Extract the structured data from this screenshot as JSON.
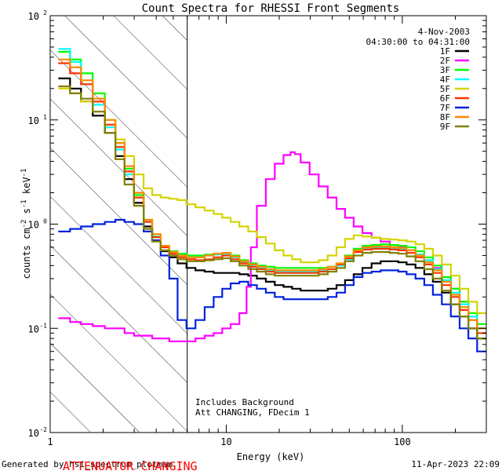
{
  "chart_data": {
    "type": "line",
    "title": "Count Spectra for RHESSI Front Segments",
    "xlabel": "Energy (keV)",
    "ylabel_parts": [
      "counts cm",
      "-2",
      " s",
      "-1",
      " keV",
      "-1"
    ],
    "xscale": "log",
    "yscale": "log",
    "xlim": [
      1,
      300
    ],
    "ylim": [
      0.01,
      100
    ],
    "x_ticks": [
      {
        "value": 1,
        "label": "1"
      },
      {
        "value": 10,
        "label": "10"
      },
      {
        "value": 100,
        "label": "100"
      }
    ],
    "y_ticks": [
      {
        "value": 0.01,
        "base": "10",
        "exp": "-2"
      },
      {
        "value": 0.1,
        "base": "10",
        "exp": "-1"
      },
      {
        "value": 1,
        "base": "10",
        "exp": "0"
      },
      {
        "value": 10,
        "base": "10",
        "exp": "1"
      },
      {
        "value": 100,
        "base": "10",
        "exp": "2"
      }
    ],
    "shaded_region": {
      "from": 1,
      "to": 6,
      "style": "diagonal-hatch"
    },
    "vertical_line": 6,
    "date": "4-Nov-2003",
    "time_range": "04:30:00 to 04:31:00",
    "legend_position": "top-right",
    "annotations": [
      "Includes Background",
      "Att CHANGING, FDecim  1"
    ],
    "series": [
      {
        "name": "1F",
        "color": "#000000",
        "x": [
          1.2,
          1.4,
          1.6,
          1.9,
          2.2,
          2.5,
          2.8,
          3.2,
          3.6,
          4.0,
          4.5,
          5.0,
          5.6,
          6.3,
          7.1,
          8.0,
          9.0,
          10,
          11.2,
          12.6,
          14.1,
          15.8,
          17.8,
          20,
          22.4,
          25,
          28,
          31.6,
          35.5,
          40,
          44.7,
          50,
          56,
          63,
          71,
          80,
          90,
          100,
          112,
          126,
          141,
          158,
          178,
          200,
          224,
          251,
          282
        ],
        "y": [
          25,
          20,
          15,
          11,
          7.5,
          4.5,
          2.7,
          1.6,
          0.95,
          0.7,
          0.55,
          0.48,
          0.42,
          0.38,
          0.36,
          0.35,
          0.34,
          0.34,
          0.34,
          0.33,
          0.32,
          0.3,
          0.28,
          0.26,
          0.25,
          0.24,
          0.23,
          0.23,
          0.23,
          0.24,
          0.26,
          0.29,
          0.33,
          0.38,
          0.42,
          0.44,
          0.44,
          0.43,
          0.41,
          0.38,
          0.33,
          0.28,
          0.22,
          0.17,
          0.13,
          0.1,
          0.08
        ]
      },
      {
        "name": "2F",
        "color": "#ff00ff",
        "x": [
          1.2,
          1.4,
          1.6,
          1.9,
          2.2,
          2.5,
          2.8,
          3.2,
          3.6,
          4.0,
          4.5,
          5.0,
          5.6,
          6.3,
          7.1,
          8.0,
          9.0,
          10,
          11.2,
          12.6,
          13.5,
          14.1,
          15.8,
          17.8,
          20,
          22.4,
          24,
          25,
          28,
          31.6,
          35.5,
          40,
          44.7,
          50,
          56,
          63,
          71,
          80,
          90,
          100,
          112,
          126,
          141,
          158,
          178,
          200,
          224,
          251,
          282
        ],
        "y": [
          0.125,
          0.115,
          0.11,
          0.105,
          0.1,
          0.1,
          0.09,
          0.085,
          0.085,
          0.08,
          0.08,
          0.075,
          0.075,
          0.075,
          0.08,
          0.085,
          0.09,
          0.1,
          0.11,
          0.14,
          0.25,
          0.6,
          1.5,
          2.7,
          3.8,
          4.6,
          4.9,
          4.7,
          3.9,
          3.0,
          2.3,
          1.8,
          1.4,
          1.15,
          0.95,
          0.82,
          0.74,
          0.68,
          0.63,
          0.6,
          0.56,
          0.51,
          0.45,
          0.38,
          0.31,
          0.24,
          0.18,
          0.13,
          0.1
        ]
      },
      {
        "name": "3F",
        "color": "#00ff00",
        "x": [
          1.2,
          1.4,
          1.6,
          1.9,
          2.2,
          2.5,
          2.8,
          3.2,
          3.6,
          4.0,
          4.5,
          5.0,
          5.6,
          6.3,
          7.1,
          8.0,
          9.0,
          10,
          11.2,
          12.6,
          14.1,
          15.8,
          17.8,
          20,
          22.4,
          25,
          28,
          31.6,
          35.5,
          40,
          44.7,
          50,
          56,
          63,
          71,
          80,
          90,
          100,
          112,
          126,
          141,
          158,
          178,
          200,
          224,
          251,
          282
        ],
        "y": [
          45,
          38,
          28,
          18,
          10,
          6,
          3.4,
          1.9,
          1.1,
          0.8,
          0.62,
          0.55,
          0.52,
          0.5,
          0.5,
          0.51,
          0.52,
          0.53,
          0.5,
          0.45,
          0.42,
          0.4,
          0.39,
          0.38,
          0.38,
          0.38,
          0.38,
          0.38,
          0.38,
          0.39,
          0.42,
          0.5,
          0.58,
          0.62,
          0.63,
          0.64,
          0.63,
          0.62,
          0.6,
          0.55,
          0.48,
          0.4,
          0.31,
          0.24,
          0.18,
          0.14,
          0.11
        ]
      },
      {
        "name": "4F",
        "color": "#00ffff",
        "x": [
          1.2,
          1.4,
          1.6,
          1.9,
          2.2,
          2.5,
          2.8,
          3.2,
          3.6,
          4.0,
          4.5,
          5.0,
          5.6,
          6.3,
          7.1,
          8.0,
          9.0,
          10,
          11.2,
          12.6,
          14.1,
          15.8,
          17.8,
          20,
          22.4,
          25,
          28,
          31.6,
          35.5,
          40,
          44.7,
          50,
          56,
          63,
          71,
          80,
          90,
          100,
          112,
          126,
          141,
          158,
          178,
          200,
          224,
          251,
          282
        ],
        "y": [
          48,
          36,
          22,
          14,
          8.5,
          5.2,
          3.0,
          1.8,
          1.05,
          0.76,
          0.6,
          0.53,
          0.5,
          0.48,
          0.48,
          0.5,
          0.51,
          0.52,
          0.48,
          0.43,
          0.4,
          0.38,
          0.36,
          0.35,
          0.35,
          0.35,
          0.35,
          0.35,
          0.36,
          0.37,
          0.4,
          0.46,
          0.54,
          0.58,
          0.59,
          0.6,
          0.59,
          0.58,
          0.56,
          0.51,
          0.45,
          0.37,
          0.29,
          0.22,
          0.17,
          0.13,
          0.1
        ]
      },
      {
        "name": "5F",
        "color": "#d4d400",
        "x": [
          1.2,
          1.4,
          1.6,
          1.9,
          2.2,
          2.5,
          2.8,
          3.2,
          3.6,
          4.0,
          4.5,
          5.0,
          5.6,
          6.3,
          7.1,
          8.0,
          9.0,
          10,
          11.2,
          12.6,
          14.1,
          15.8,
          17.8,
          20,
          22.4,
          25,
          28,
          31.6,
          35.5,
          40,
          44.7,
          50,
          56,
          63,
          71,
          80,
          90,
          100,
          112,
          126,
          141,
          158,
          178,
          200,
          224,
          251,
          282
        ],
        "y": [
          20,
          18,
          15,
          12,
          9,
          6.5,
          4.5,
          3.0,
          2.2,
          1.9,
          1.8,
          1.75,
          1.7,
          1.55,
          1.45,
          1.35,
          1.25,
          1.15,
          1.05,
          0.95,
          0.85,
          0.75,
          0.65,
          0.56,
          0.5,
          0.46,
          0.43,
          0.43,
          0.45,
          0.5,
          0.6,
          0.72,
          0.78,
          0.76,
          0.74,
          0.72,
          0.71,
          0.7,
          0.68,
          0.64,
          0.58,
          0.5,
          0.41,
          0.32,
          0.24,
          0.18,
          0.14
        ]
      },
      {
        "name": "6F",
        "color": "#ff3300",
        "x": [
          1.2,
          1.4,
          1.6,
          1.9,
          2.2,
          2.5,
          2.8,
          3.2,
          3.6,
          4.0,
          4.5,
          5.0,
          5.6,
          6.3,
          7.1,
          8.0,
          9.0,
          10,
          11.2,
          12.6,
          14.1,
          15.8,
          17.8,
          20,
          22.4,
          25,
          28,
          31.6,
          35.5,
          40,
          44.7,
          50,
          56,
          63,
          71,
          80,
          90,
          100,
          112,
          126,
          141,
          158,
          178,
          200,
          224,
          251,
          282
        ],
        "y": [
          35,
          28,
          22,
          15,
          9,
          5.5,
          3.2,
          1.8,
          1.05,
          0.75,
          0.6,
          0.52,
          0.48,
          0.46,
          0.45,
          0.46,
          0.48,
          0.5,
          0.46,
          0.42,
          0.39,
          0.37,
          0.35,
          0.34,
          0.34,
          0.34,
          0.34,
          0.34,
          0.35,
          0.37,
          0.41,
          0.47,
          0.54,
          0.57,
          0.58,
          0.58,
          0.57,
          0.56,
          0.53,
          0.48,
          0.41,
          0.34,
          0.26,
          0.2,
          0.15,
          0.12,
          0.09
        ]
      },
      {
        "name": "7F",
        "color": "#0022dd",
        "x": [
          1.2,
          1.4,
          1.6,
          1.9,
          2.2,
          2.5,
          2.8,
          3.2,
          3.6,
          4.0,
          4.5,
          5.0,
          5.6,
          6.3,
          7.1,
          8.0,
          9.0,
          10,
          11.2,
          12.6,
          14.1,
          15.8,
          17.8,
          20,
          22.4,
          25,
          28,
          31.6,
          35.5,
          40,
          44.7,
          50,
          56,
          63,
          71,
          80,
          90,
          100,
          112,
          126,
          141,
          158,
          178,
          200,
          224,
          251,
          282
        ],
        "y": [
          0.85,
          0.9,
          0.95,
          1.0,
          1.05,
          1.1,
          1.05,
          1.0,
          0.85,
          0.7,
          0.5,
          0.3,
          0.12,
          0.1,
          0.12,
          0.16,
          0.2,
          0.24,
          0.27,
          0.28,
          0.26,
          0.24,
          0.22,
          0.2,
          0.19,
          0.19,
          0.19,
          0.19,
          0.19,
          0.2,
          0.22,
          0.26,
          0.31,
          0.34,
          0.35,
          0.36,
          0.36,
          0.35,
          0.33,
          0.3,
          0.26,
          0.21,
          0.17,
          0.13,
          0.1,
          0.08,
          0.06
        ]
      },
      {
        "name": "8F",
        "color": "#ff8800",
        "x": [
          1.2,
          1.4,
          1.6,
          1.9,
          2.2,
          2.5,
          2.8,
          3.2,
          3.6,
          4.0,
          4.5,
          5.0,
          5.6,
          6.3,
          7.1,
          8.0,
          9.0,
          10,
          11.2,
          12.6,
          14.1,
          15.8,
          17.8,
          20,
          22.4,
          25,
          28,
          31.6,
          35.5,
          40,
          44.7,
          50,
          56,
          63,
          71,
          80,
          90,
          100,
          112,
          126,
          141,
          158,
          178,
          200,
          224,
          251,
          282
        ],
        "y": [
          38,
          32,
          24,
          16,
          10,
          6,
          3.6,
          2.0,
          1.1,
          0.8,
          0.62,
          0.54,
          0.5,
          0.48,
          0.48,
          0.5,
          0.52,
          0.53,
          0.49,
          0.44,
          0.41,
          0.39,
          0.37,
          0.36,
          0.36,
          0.36,
          0.36,
          0.36,
          0.37,
          0.39,
          0.42,
          0.49,
          0.56,
          0.6,
          0.61,
          0.61,
          0.6,
          0.59,
          0.56,
          0.5,
          0.43,
          0.36,
          0.28,
          0.21,
          0.16,
          0.12,
          0.1
        ]
      },
      {
        "name": "9F",
        "color": "#808000",
        "x": [
          1.2,
          1.4,
          1.6,
          1.9,
          2.2,
          2.5,
          2.8,
          3.2,
          3.6,
          4.0,
          4.5,
          5.0,
          5.6,
          6.3,
          7.1,
          8.0,
          9.0,
          10,
          11.2,
          12.6,
          14.1,
          15.8,
          17.8,
          20,
          22.4,
          25,
          28,
          31.6,
          35.5,
          40,
          44.7,
          50,
          56,
          63,
          71,
          80,
          90,
          100,
          112,
          126,
          141,
          158,
          178,
          200,
          224,
          251,
          282
        ],
        "y": [
          21,
          18,
          16,
          12,
          7.5,
          4.2,
          2.4,
          1.5,
          0.9,
          0.68,
          0.56,
          0.5,
          0.46,
          0.44,
          0.44,
          0.45,
          0.46,
          0.47,
          0.44,
          0.4,
          0.37,
          0.35,
          0.33,
          0.32,
          0.32,
          0.32,
          0.32,
          0.32,
          0.33,
          0.35,
          0.38,
          0.44,
          0.5,
          0.53,
          0.54,
          0.54,
          0.53,
          0.52,
          0.49,
          0.44,
          0.37,
          0.3,
          0.23,
          0.17,
          0.13,
          0.1,
          0.08
        ]
      }
    ]
  },
  "footer": {
    "generated_by": "Generated by hsi_spectrum_plotman",
    "generated_at": "11-Apr-2023 22:09",
    "warning": "ATTENUATOR CHANGING",
    "warning_color": "#ff0000"
  }
}
